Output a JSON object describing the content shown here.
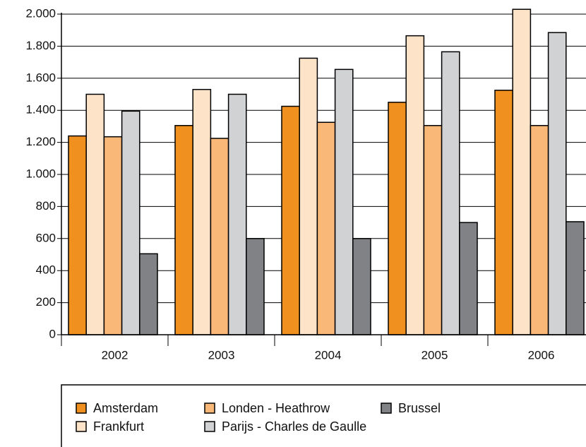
{
  "chart_data": {
    "type": "bar",
    "categories": [
      "2002",
      "2003",
      "2004",
      "2005",
      "2006"
    ],
    "series": [
      {
        "name": "Amsterdam",
        "color": "#f0901e",
        "values": [
          1240,
          1305,
          1425,
          1450,
          1525
        ]
      },
      {
        "name": "Frankfurt",
        "color": "#fde4c8",
        "values": [
          1500,
          1530,
          1725,
          1865,
          2030
        ]
      },
      {
        "name": "Londen - Heathrow",
        "color": "#f9b878",
        "values": [
          1235,
          1225,
          1325,
          1305,
          1305
        ]
      },
      {
        "name": "Parijs - Charles de Gaulle",
        "color": "#d1d2d4",
        "values": [
          1395,
          1500,
          1655,
          1765,
          1885
        ]
      },
      {
        "name": "Brussel",
        "color": "#808285",
        "values": [
          505,
          600,
          600,
          700,
          705
        ]
      }
    ],
    "ylim": [
      0,
      2000
    ],
    "yticks": [
      0,
      200,
      400,
      600,
      800,
      {
        "value": 1000,
        "label": "1.000"
      },
      {
        "value": 1200,
        "label": "1.200"
      },
      {
        "value": 1400,
        "label": "1.400"
      },
      {
        "value": 1600,
        "label": "1.600"
      },
      {
        "value": 1800,
        "label": "1.800"
      },
      {
        "value": 2000,
        "label": "2.000"
      }
    ],
    "grid": true
  }
}
